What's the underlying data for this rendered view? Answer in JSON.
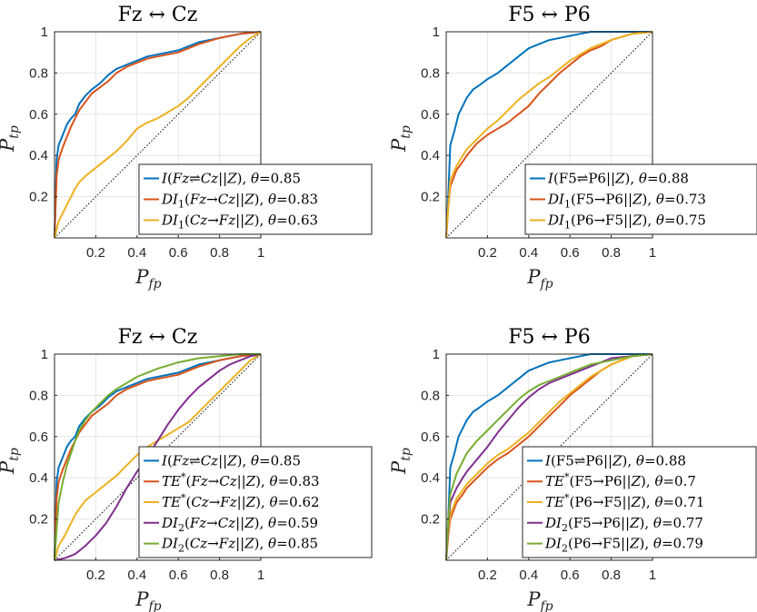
{
  "chart_data": [
    {
      "type": "line",
      "title": "Fz ↔ Cz",
      "xlabel": "P_fp",
      "ylabel": "P_tp",
      "xlim": [
        0,
        1
      ],
      "ylim": [
        0,
        1
      ],
      "xticks": [
        "0.2",
        "0.4",
        "0.6",
        "0.8",
        "1"
      ],
      "yticks": [
        "0.2",
        "0.4",
        "0.6",
        "0.8",
        "1"
      ],
      "grid": true,
      "legend_position": "bottom-right",
      "series": [
        {
          "name": "I(Fz⇌Cz||Z), θ=0.85",
          "color": "#0072BD",
          "x": [
            0,
            0.01,
            0.02,
            0.04,
            0.06,
            0.08,
            0.1,
            0.12,
            0.15,
            0.18,
            0.22,
            0.26,
            0.3,
            0.35,
            0.4,
            0.45,
            0.5,
            0.6,
            0.7,
            0.8,
            0.9,
            1
          ],
          "y": [
            0,
            0.38,
            0.45,
            0.5,
            0.55,
            0.58,
            0.6,
            0.65,
            0.69,
            0.72,
            0.75,
            0.79,
            0.82,
            0.84,
            0.86,
            0.88,
            0.89,
            0.91,
            0.95,
            0.97,
            0.99,
            1
          ]
        },
        {
          "name": "DI1(Fz→Cz||Z), θ=0.83",
          "color": "#D95319",
          "x": [
            0,
            0.01,
            0.02,
            0.04,
            0.06,
            0.08,
            0.1,
            0.12,
            0.15,
            0.18,
            0.22,
            0.26,
            0.3,
            0.35,
            0.4,
            0.45,
            0.5,
            0.6,
            0.7,
            0.8,
            0.9,
            1
          ],
          "y": [
            0,
            0.3,
            0.38,
            0.44,
            0.49,
            0.54,
            0.58,
            0.62,
            0.66,
            0.7,
            0.73,
            0.76,
            0.8,
            0.83,
            0.85,
            0.87,
            0.88,
            0.9,
            0.94,
            0.97,
            0.99,
            1
          ]
        },
        {
          "name": "DI1(Cz→Fz||Z), θ=0.63",
          "color": "#EDB120",
          "x": [
            0,
            0.02,
            0.05,
            0.08,
            0.1,
            0.12,
            0.15,
            0.2,
            0.25,
            0.3,
            0.35,
            0.4,
            0.45,
            0.5,
            0.55,
            0.6,
            0.65,
            0.7,
            0.75,
            0.8,
            0.85,
            0.9,
            0.95,
            1
          ],
          "y": [
            0,
            0.08,
            0.14,
            0.2,
            0.24,
            0.27,
            0.3,
            0.34,
            0.38,
            0.42,
            0.47,
            0.53,
            0.56,
            0.58,
            0.61,
            0.64,
            0.68,
            0.73,
            0.78,
            0.83,
            0.88,
            0.93,
            0.97,
            1
          ]
        }
      ]
    },
    {
      "type": "line",
      "title": "F5 ↔ P6",
      "xlabel": "P_fp",
      "ylabel": "P_tp",
      "xlim": [
        0,
        1
      ],
      "ylim": [
        0,
        1
      ],
      "xticks": [
        "0.2",
        "0.4",
        "0.6",
        "0.8",
        "1"
      ],
      "yticks": [
        "0.2",
        "0.4",
        "0.6",
        "0.8",
        "1"
      ],
      "grid": true,
      "legend_position": "bottom-right",
      "series": [
        {
          "name": "I(F5⇌P6||Z), θ=0.88",
          "color": "#0072BD",
          "x": [
            0,
            0.01,
            0.02,
            0.04,
            0.06,
            0.08,
            0.1,
            0.13,
            0.16,
            0.2,
            0.25,
            0.3,
            0.35,
            0.4,
            0.45,
            0.5,
            0.55,
            0.6,
            0.65,
            0.7,
            0.8,
            0.9,
            1
          ],
          "y": [
            0,
            0.2,
            0.45,
            0.52,
            0.6,
            0.64,
            0.68,
            0.72,
            0.74,
            0.77,
            0.8,
            0.84,
            0.88,
            0.92,
            0.94,
            0.96,
            0.97,
            0.98,
            0.99,
            1,
            1,
            1,
            1
          ]
        },
        {
          "name": "DI1(F5→P6||Z), θ=0.73",
          "color": "#D95319",
          "x": [
            0,
            0.01,
            0.02,
            0.05,
            0.08,
            0.1,
            0.15,
            0.2,
            0.25,
            0.3,
            0.35,
            0.4,
            0.45,
            0.5,
            0.55,
            0.6,
            0.65,
            0.7,
            0.75,
            0.8,
            0.9,
            1
          ],
          "y": [
            0,
            0.15,
            0.25,
            0.33,
            0.37,
            0.4,
            0.46,
            0.5,
            0.53,
            0.56,
            0.6,
            0.64,
            0.7,
            0.75,
            0.8,
            0.84,
            0.88,
            0.91,
            0.93,
            0.96,
            0.99,
            1
          ]
        },
        {
          "name": "DI1(P6→F5||Z), θ=0.75",
          "color": "#EDB120",
          "x": [
            0,
            0.01,
            0.02,
            0.05,
            0.08,
            0.1,
            0.15,
            0.2,
            0.25,
            0.3,
            0.35,
            0.4,
            0.45,
            0.5,
            0.55,
            0.6,
            0.65,
            0.7,
            0.75,
            0.8,
            0.9,
            1
          ],
          "y": [
            0,
            0.15,
            0.28,
            0.35,
            0.4,
            0.43,
            0.48,
            0.53,
            0.57,
            0.62,
            0.67,
            0.71,
            0.75,
            0.78,
            0.82,
            0.86,
            0.89,
            0.92,
            0.94,
            0.96,
            0.99,
            1
          ]
        }
      ]
    },
    {
      "type": "line",
      "title": "Fz ↔ Cz",
      "xlabel": "P_fp",
      "ylabel": "P_tp",
      "xlim": [
        0,
        1
      ],
      "ylim": [
        0,
        1
      ],
      "xticks": [
        "0.2",
        "0.4",
        "0.6",
        "0.8",
        "1"
      ],
      "yticks": [
        "0.2",
        "0.4",
        "0.6",
        "0.8",
        "1"
      ],
      "grid": true,
      "legend_position": "bottom-right",
      "series": [
        {
          "name": "I(Fz⇌Cz||Z), θ=0.85",
          "color": "#0072BD",
          "x": [
            0,
            0.01,
            0.02,
            0.04,
            0.06,
            0.08,
            0.1,
            0.12,
            0.15,
            0.18,
            0.22,
            0.26,
            0.3,
            0.35,
            0.4,
            0.45,
            0.5,
            0.6,
            0.7,
            0.8,
            0.9,
            1
          ],
          "y": [
            0,
            0.38,
            0.45,
            0.5,
            0.55,
            0.58,
            0.6,
            0.65,
            0.69,
            0.72,
            0.75,
            0.79,
            0.82,
            0.84,
            0.86,
            0.88,
            0.89,
            0.91,
            0.95,
            0.97,
            0.99,
            1
          ]
        },
        {
          "name": "TE*(Fz→Cz||Z), θ=0.83",
          "color": "#D95319",
          "x": [
            0,
            0.01,
            0.02,
            0.04,
            0.06,
            0.08,
            0.1,
            0.12,
            0.15,
            0.18,
            0.22,
            0.26,
            0.3,
            0.35,
            0.4,
            0.45,
            0.5,
            0.6,
            0.7,
            0.8,
            0.9,
            1
          ],
          "y": [
            0,
            0.3,
            0.38,
            0.44,
            0.49,
            0.54,
            0.58,
            0.62,
            0.66,
            0.7,
            0.73,
            0.76,
            0.8,
            0.83,
            0.85,
            0.87,
            0.88,
            0.9,
            0.94,
            0.97,
            0.99,
            1
          ]
        },
        {
          "name": "TE*(Cz→Fz||Z), θ=0.62",
          "color": "#EDB120",
          "x": [
            0,
            0.02,
            0.05,
            0.08,
            0.1,
            0.12,
            0.15,
            0.2,
            0.25,
            0.3,
            0.35,
            0.4,
            0.45,
            0.5,
            0.55,
            0.6,
            0.65,
            0.7,
            0.75,
            0.8,
            0.85,
            0.9,
            0.95,
            1
          ],
          "y": [
            0,
            0.07,
            0.12,
            0.18,
            0.22,
            0.25,
            0.29,
            0.33,
            0.37,
            0.41,
            0.46,
            0.51,
            0.55,
            0.58,
            0.61,
            0.64,
            0.67,
            0.72,
            0.77,
            0.82,
            0.87,
            0.92,
            0.97,
            1
          ]
        },
        {
          "name": "DI2(Fz→Cz||Z), θ=0.59",
          "color": "#7E2F8E",
          "x": [
            0,
            0.05,
            0.1,
            0.15,
            0.2,
            0.25,
            0.3,
            0.35,
            0.4,
            0.45,
            0.5,
            0.55,
            0.6,
            0.65,
            0.7,
            0.75,
            0.8,
            0.85,
            0.9,
            0.95,
            1
          ],
          "y": [
            0,
            0.01,
            0.03,
            0.07,
            0.12,
            0.18,
            0.26,
            0.35,
            0.43,
            0.5,
            0.58,
            0.66,
            0.73,
            0.79,
            0.84,
            0.88,
            0.92,
            0.95,
            0.97,
            0.99,
            1
          ]
        },
        {
          "name": "DI2(Cz→Fz||Z), θ=0.85",
          "color": "#77AC30",
          "x": [
            0,
            0.01,
            0.02,
            0.04,
            0.06,
            0.08,
            0.1,
            0.12,
            0.15,
            0.18,
            0.22,
            0.26,
            0.3,
            0.35,
            0.4,
            0.45,
            0.5,
            0.6,
            0.7,
            0.8,
            0.9,
            1
          ],
          "y": [
            0,
            0.15,
            0.28,
            0.38,
            0.46,
            0.52,
            0.58,
            0.63,
            0.68,
            0.72,
            0.76,
            0.8,
            0.83,
            0.86,
            0.89,
            0.91,
            0.93,
            0.96,
            0.98,
            0.99,
            1,
            1
          ]
        }
      ]
    },
    {
      "type": "line",
      "title": "F5 ↔ P6",
      "xlabel": "P_fp",
      "ylabel": "P_tp",
      "xlim": [
        0,
        1
      ],
      "ylim": [
        0,
        1
      ],
      "xticks": [
        "0.2",
        "0.4",
        "0.6",
        "0.8",
        "1"
      ],
      "yticks": [
        "0.2",
        "0.4",
        "0.6",
        "0.8",
        "1"
      ],
      "grid": true,
      "legend_position": "bottom-right",
      "series": [
        {
          "name": "I(F5⇌P6||Z), θ=0.88",
          "color": "#0072BD",
          "x": [
            0,
            0.01,
            0.02,
            0.04,
            0.06,
            0.08,
            0.1,
            0.13,
            0.16,
            0.2,
            0.25,
            0.3,
            0.35,
            0.4,
            0.45,
            0.5,
            0.55,
            0.6,
            0.65,
            0.7,
            0.8,
            0.9,
            1
          ],
          "y": [
            0,
            0.2,
            0.45,
            0.52,
            0.6,
            0.64,
            0.68,
            0.72,
            0.74,
            0.77,
            0.8,
            0.84,
            0.88,
            0.92,
            0.94,
            0.96,
            0.97,
            0.98,
            0.99,
            1,
            1,
            1,
            1
          ]
        },
        {
          "name": "TE*(F5→P6||Z), θ=0.7",
          "color": "#D95319",
          "x": [
            0,
            0.01,
            0.02,
            0.05,
            0.08,
            0.1,
            0.15,
            0.2,
            0.25,
            0.3,
            0.35,
            0.4,
            0.45,
            0.5,
            0.55,
            0.6,
            0.65,
            0.7,
            0.75,
            0.8,
            0.9,
            1
          ],
          "y": [
            0,
            0.12,
            0.2,
            0.28,
            0.32,
            0.35,
            0.4,
            0.45,
            0.49,
            0.52,
            0.56,
            0.6,
            0.65,
            0.7,
            0.75,
            0.8,
            0.84,
            0.88,
            0.92,
            0.95,
            0.99,
            1
          ]
        },
        {
          "name": "TE*(P6→F5||Z), θ=0.71",
          "color": "#EDB120",
          "x": [
            0,
            0.01,
            0.02,
            0.05,
            0.08,
            0.1,
            0.15,
            0.2,
            0.25,
            0.3,
            0.35,
            0.4,
            0.45,
            0.5,
            0.55,
            0.6,
            0.65,
            0.7,
            0.75,
            0.8,
            0.9,
            1
          ],
          "y": [
            0,
            0.14,
            0.22,
            0.3,
            0.34,
            0.37,
            0.42,
            0.47,
            0.51,
            0.54,
            0.58,
            0.62,
            0.67,
            0.72,
            0.77,
            0.81,
            0.85,
            0.89,
            0.92,
            0.95,
            0.99,
            1
          ]
        },
        {
          "name": "DI2(F5→P6||Z), θ=0.77",
          "color": "#7E2F8E",
          "x": [
            0,
            0.01,
            0.02,
            0.05,
            0.08,
            0.1,
            0.15,
            0.2,
            0.25,
            0.3,
            0.35,
            0.4,
            0.45,
            0.5,
            0.55,
            0.6,
            0.65,
            0.7,
            0.75,
            0.8,
            0.9,
            1
          ],
          "y": [
            0,
            0.18,
            0.28,
            0.35,
            0.4,
            0.43,
            0.49,
            0.55,
            0.62,
            0.68,
            0.74,
            0.79,
            0.83,
            0.86,
            0.88,
            0.9,
            0.92,
            0.94,
            0.96,
            0.98,
            0.99,
            1
          ]
        },
        {
          "name": "DI2(P6→F5||Z), θ=0.79",
          "color": "#77AC30",
          "x": [
            0,
            0.01,
            0.02,
            0.05,
            0.08,
            0.1,
            0.15,
            0.2,
            0.25,
            0.3,
            0.35,
            0.4,
            0.45,
            0.5,
            0.55,
            0.6,
            0.65,
            0.7,
            0.75,
            0.8,
            0.9,
            1
          ],
          "y": [
            0,
            0.2,
            0.32,
            0.42,
            0.48,
            0.52,
            0.58,
            0.63,
            0.68,
            0.73,
            0.78,
            0.82,
            0.85,
            0.87,
            0.89,
            0.91,
            0.93,
            0.95,
            0.96,
            0.97,
            0.99,
            1
          ]
        }
      ]
    }
  ]
}
